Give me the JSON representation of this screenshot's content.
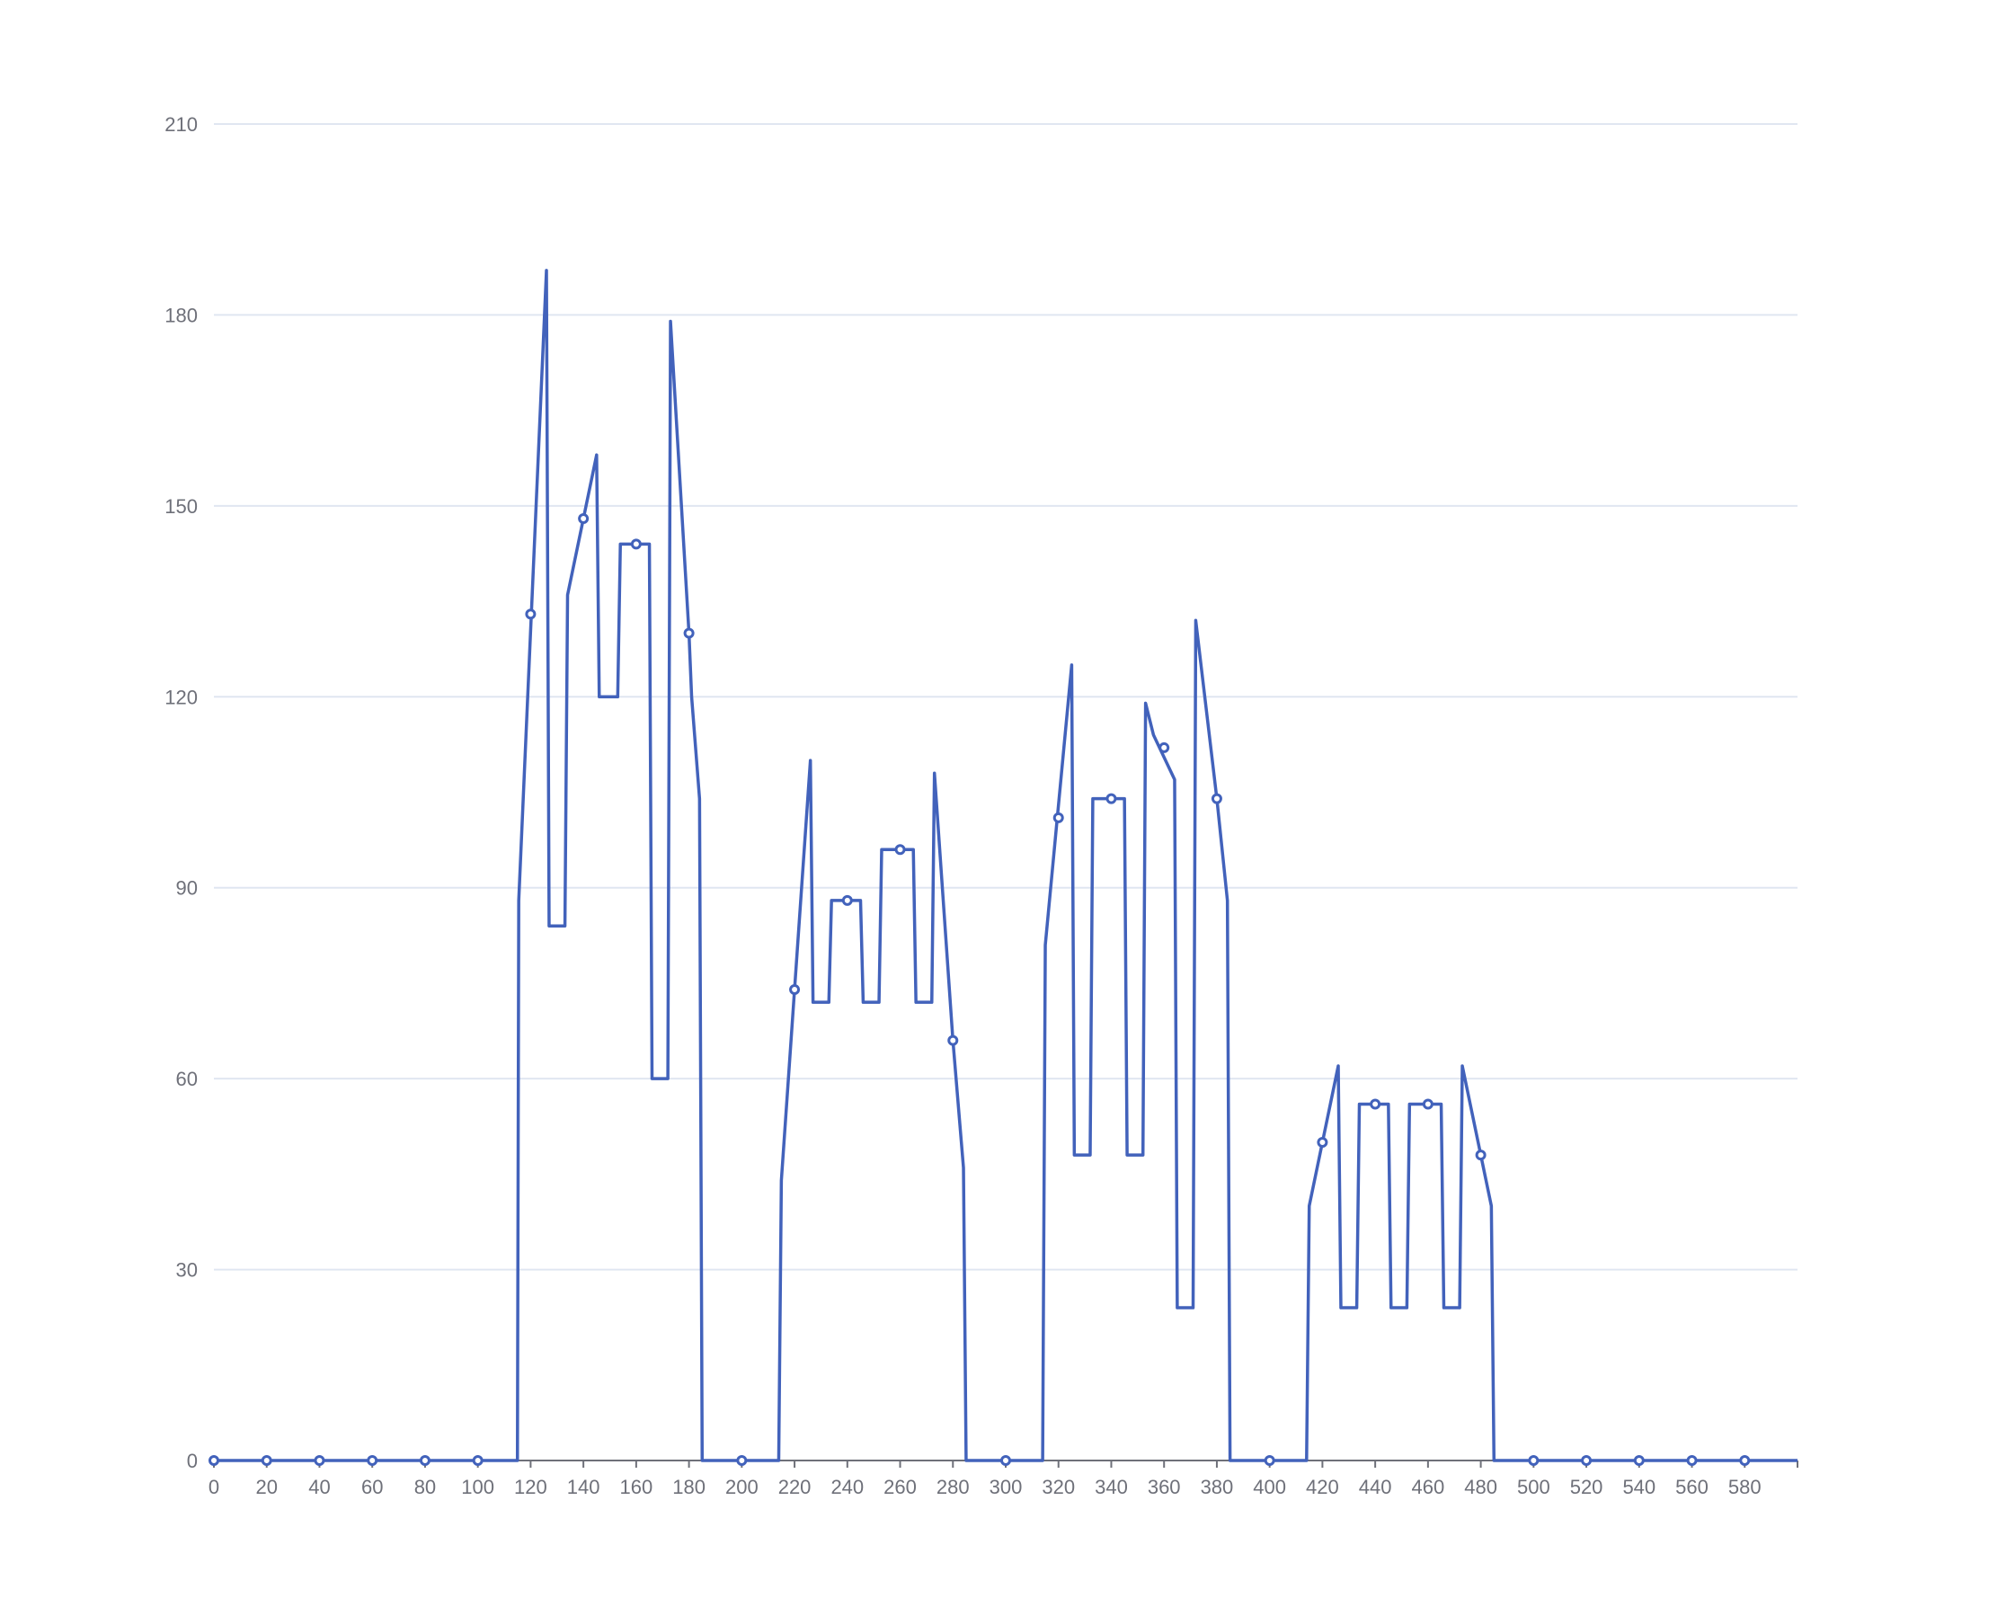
{
  "chart_data": {
    "type": "line",
    "title": "",
    "xlabel": "",
    "ylabel": "",
    "xlim": [
      0,
      600
    ],
    "ylim": [
      0,
      210
    ],
    "x_ticks": [
      0,
      20,
      40,
      60,
      80,
      100,
      120,
      140,
      160,
      180,
      200,
      220,
      240,
      260,
      280,
      300,
      320,
      340,
      360,
      380,
      400,
      420,
      440,
      460,
      480,
      500,
      520,
      540,
      560,
      580
    ],
    "y_ticks": [
      0,
      30,
      60,
      90,
      120,
      150,
      180,
      210
    ],
    "grid": true,
    "legend": "none",
    "colors": {
      "series": "#4262bb",
      "grid": "#e0e6f1",
      "axis": "#6e7079"
    },
    "series": [
      {
        "points": [
          [
            0,
            0
          ],
          [
            115,
            0
          ],
          [
            115.5,
            88
          ],
          [
            126,
            187
          ],
          [
            127,
            84
          ],
          [
            133,
            84
          ],
          [
            134,
            136
          ],
          [
            145,
            158
          ],
          [
            146,
            120
          ],
          [
            153,
            120
          ],
          [
            154,
            144
          ],
          [
            165,
            144
          ],
          [
            166,
            60
          ],
          [
            172,
            60
          ],
          [
            173,
            179
          ],
          [
            180,
            130
          ],
          [
            181,
            120
          ],
          [
            184,
            104
          ],
          [
            185,
            0
          ],
          [
            214,
            0
          ],
          [
            215,
            44
          ],
          [
            226,
            110
          ],
          [
            227,
            72
          ],
          [
            233,
            72
          ],
          [
            234,
            88
          ],
          [
            245,
            88
          ],
          [
            246,
            72
          ],
          [
            252,
            72
          ],
          [
            253,
            96
          ],
          [
            265,
            96
          ],
          [
            266,
            72
          ],
          [
            272,
            72
          ],
          [
            273,
            108
          ],
          [
            280,
            66
          ],
          [
            284,
            46
          ],
          [
            285,
            0
          ],
          [
            314,
            0
          ],
          [
            315,
            81
          ],
          [
            325,
            125
          ],
          [
            326,
            48
          ],
          [
            332,
            48
          ],
          [
            333,
            104
          ],
          [
            345,
            104
          ],
          [
            346,
            48
          ],
          [
            352,
            48
          ],
          [
            353,
            119
          ],
          [
            356,
            114
          ],
          [
            364,
            107
          ],
          [
            365,
            24
          ],
          [
            371,
            24
          ],
          [
            372,
            132
          ],
          [
            380,
            104
          ],
          [
            384,
            88
          ],
          [
            385,
            0
          ],
          [
            414,
            0
          ],
          [
            415,
            40
          ],
          [
            426,
            62
          ],
          [
            427,
            24
          ],
          [
            433,
            24
          ],
          [
            434,
            56
          ],
          [
            445,
            56
          ],
          [
            446,
            24
          ],
          [
            452,
            24
          ],
          [
            453,
            56
          ],
          [
            465,
            56
          ],
          [
            466,
            24
          ],
          [
            472,
            24
          ],
          [
            473,
            62
          ],
          [
            480,
            48
          ],
          [
            484,
            40
          ],
          [
            485,
            0
          ],
          [
            600,
            0
          ]
        ],
        "markers": [
          [
            0,
            0
          ],
          [
            20,
            0
          ],
          [
            40,
            0
          ],
          [
            60,
            0
          ],
          [
            80,
            0
          ],
          [
            100,
            0
          ],
          [
            120,
            133
          ],
          [
            140,
            148
          ],
          [
            160,
            144
          ],
          [
            180,
            130
          ],
          [
            200,
            0
          ],
          [
            220,
            74
          ],
          [
            240,
            88
          ],
          [
            260,
            96
          ],
          [
            280,
            66
          ],
          [
            300,
            0
          ],
          [
            320,
            101
          ],
          [
            340,
            104
          ],
          [
            360,
            112
          ],
          [
            380,
            104
          ],
          [
            400,
            0
          ],
          [
            420,
            50
          ],
          [
            440,
            56
          ],
          [
            460,
            56
          ],
          [
            480,
            48
          ],
          [
            500,
            0
          ],
          [
            520,
            0
          ],
          [
            540,
            0
          ],
          [
            560,
            0
          ],
          [
            580,
            0
          ]
        ]
      }
    ]
  }
}
